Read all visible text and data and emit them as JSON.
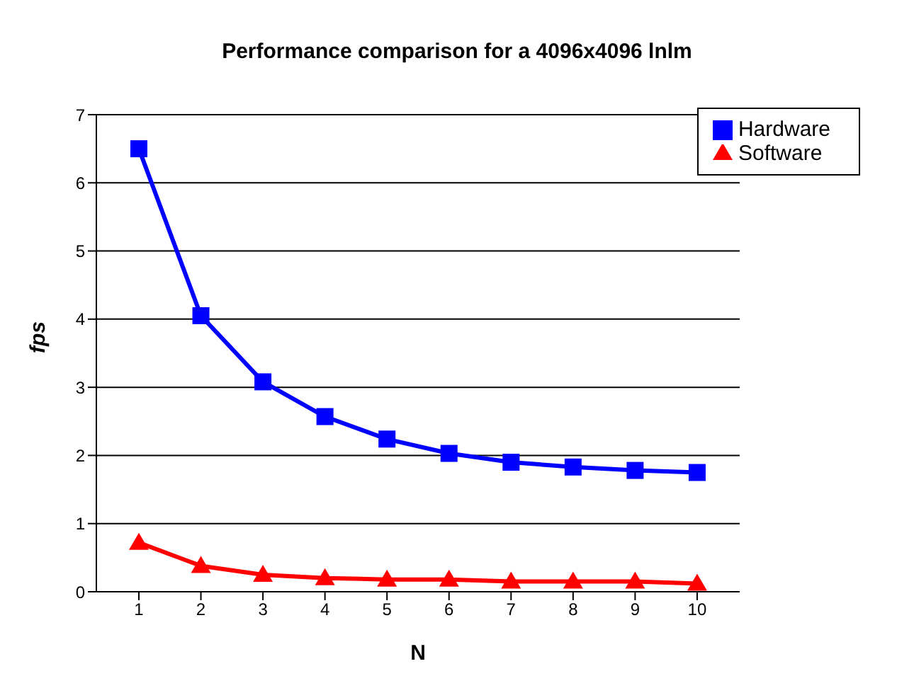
{
  "chart_data": {
    "type": "line",
    "title": "Performance comparison for a 4096x4096 lnlm",
    "xlabel": "N",
    "ylabel": "fps",
    "categories": [
      "1",
      "2",
      "3",
      "4",
      "5",
      "6",
      "7",
      "8",
      "9",
      "10"
    ],
    "series": [
      {
        "name": "Hardware",
        "color": "#0000ff",
        "marker": "square",
        "values": [
          6.5,
          4.05,
          3.08,
          2.57,
          2.24,
          2.03,
          1.9,
          1.83,
          1.78,
          1.75
        ]
      },
      {
        "name": "Software",
        "color": "#ff0000",
        "marker": "triangle",
        "values": [
          0.72,
          0.38,
          0.25,
          0.2,
          0.18,
          0.18,
          0.15,
          0.15,
          0.15,
          0.12
        ]
      }
    ],
    "ylim": [
      0,
      7
    ],
    "yticks": [
      0,
      1,
      2,
      3,
      4,
      5,
      6,
      7
    ],
    "grid": "y",
    "legend": "top right",
    "line_style": "solid"
  }
}
